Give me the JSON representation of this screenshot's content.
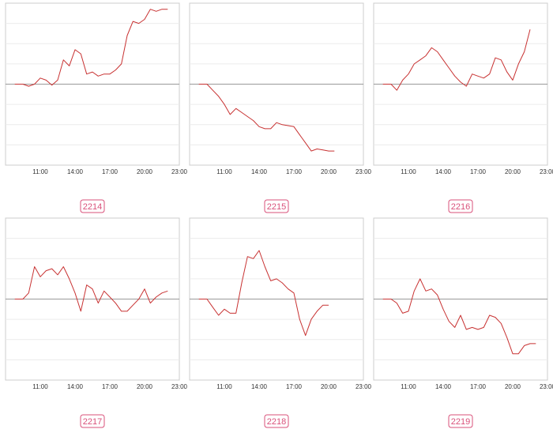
{
  "colors": {
    "line": "#c83232",
    "baseline": "#999999",
    "frame": "#cccccc",
    "grid": "#ececec",
    "badge": "#d9507a",
    "tick": "#333333"
  },
  "chart_data": [
    {
      "type": "line",
      "id": "2214",
      "x_ticks": [
        "11:00",
        "14:00",
        "17:00",
        "20:00",
        "23:00"
      ],
      "grid": true,
      "series": [
        {
          "x": [
            8.8,
            9.5,
            10,
            10.5,
            11,
            11.5,
            12,
            12.5,
            13,
            13.5,
            14,
            14.5,
            15,
            15.5,
            16,
            16.5,
            17,
            17.5,
            18,
            18.5,
            19,
            19.5,
            20,
            20.5,
            21,
            21.5,
            22
          ],
          "y": [
            0,
            0,
            -0.1,
            0,
            0.3,
            0.2,
            -0.05,
            0.2,
            1.2,
            0.9,
            1.7,
            1.5,
            0.5,
            0.6,
            0.4,
            0.5,
            0.5,
            0.7,
            1.0,
            2.4,
            3.1,
            3.0,
            3.2,
            3.7,
            3.6,
            3.7,
            3.7
          ]
        }
      ]
    },
    {
      "type": "line",
      "id": "2215",
      "x_ticks": [
        "11:00",
        "14:00",
        "17:00",
        "20:00",
        "23:00"
      ],
      "grid": true,
      "series": [
        {
          "x": [
            8.8,
            9.5,
            10,
            10.5,
            11,
            11.5,
            12,
            12.5,
            13,
            13.5,
            14,
            14.5,
            15,
            15.5,
            16,
            16.5,
            17,
            17.5,
            18,
            18.5,
            19,
            19.5,
            20,
            20.5
          ],
          "y": [
            0,
            0,
            -0.3,
            -0.6,
            -1.0,
            -1.5,
            -1.2,
            -1.4,
            -1.6,
            -1.8,
            -2.1,
            -2.2,
            -2.2,
            -1.9,
            -2.0,
            -2.05,
            -2.1,
            -2.5,
            -2.9,
            -3.3,
            -3.2,
            -3.25,
            -3.3,
            -3.3
          ]
        }
      ]
    },
    {
      "type": "line",
      "id": "2216",
      "x_ticks": [
        "11:00",
        "14:00",
        "17:00",
        "20:00",
        "23:00"
      ],
      "grid": true,
      "series": [
        {
          "x": [
            8.8,
            9.5,
            10,
            10.5,
            11,
            11.5,
            12,
            12.5,
            13,
            13.5,
            14,
            14.5,
            15,
            15.5,
            16,
            16.5,
            17,
            17.5,
            18,
            18.5,
            19,
            19.5,
            20,
            20.5,
            21,
            21.5
          ],
          "y": [
            0,
            0,
            -0.3,
            0.2,
            0.5,
            1.0,
            1.2,
            1.4,
            1.8,
            1.6,
            1.2,
            0.8,
            0.4,
            0.1,
            -0.1,
            0.5,
            0.4,
            0.3,
            0.5,
            1.3,
            1.2,
            0.6,
            0.2,
            1.0,
            1.6,
            2.7
          ]
        }
      ]
    },
    {
      "type": "line",
      "id": "2217",
      "x_ticks": [
        "11:00",
        "14:00",
        "17:00",
        "20:00",
        "23:00"
      ],
      "grid": true,
      "series": [
        {
          "x": [
            8.8,
            9.5,
            10,
            10.5,
            11,
            11.5,
            12,
            12.5,
            13,
            13.5,
            14,
            14.5,
            15,
            15.5,
            16,
            16.5,
            17,
            17.5,
            18,
            18.5,
            19,
            19.5,
            20,
            20.5,
            21,
            21.5,
            22
          ],
          "y": [
            0,
            0,
            0.3,
            1.6,
            1.1,
            1.4,
            1.5,
            1.2,
            1.6,
            1.0,
            0.3,
            -0.6,
            0.7,
            0.5,
            -0.2,
            0.4,
            0.1,
            -0.2,
            -0.6,
            -0.6,
            -0.3,
            0.0,
            0.5,
            -0.2,
            0.1,
            0.3,
            0.4
          ]
        }
      ]
    },
    {
      "type": "line",
      "id": "2218",
      "x_ticks": [
        "11:00",
        "14:00",
        "17:00",
        "20:00",
        "23:00"
      ],
      "grid": true,
      "series": [
        {
          "x": [
            8.8,
            9.5,
            10,
            10.5,
            11,
            11.5,
            12,
            12.5,
            13,
            13.5,
            14,
            14.5,
            15,
            15.5,
            16,
            16.5,
            17,
            17.5,
            18,
            18.5,
            19,
            19.5,
            20
          ],
          "y": [
            0,
            0,
            -0.4,
            -0.8,
            -0.5,
            -0.7,
            -0.7,
            0.8,
            2.1,
            2.0,
            2.4,
            1.6,
            0.9,
            1.0,
            0.8,
            0.5,
            0.3,
            -1.0,
            -1.8,
            -1.0,
            -0.6,
            -0.3,
            -0.3
          ]
        }
      ]
    },
    {
      "type": "line",
      "id": "2219",
      "x_ticks": [
        "11:00",
        "14:00",
        "17:00",
        "20:00",
        "23:00"
      ],
      "grid": true,
      "series": [
        {
          "x": [
            8.8,
            9.5,
            10,
            10.5,
            11,
            11.5,
            12,
            12.5,
            13,
            13.5,
            14,
            14.5,
            15,
            15.5,
            16,
            16.5,
            17,
            17.5,
            18,
            18.5,
            19,
            19.5,
            20,
            20.5,
            21,
            21.5,
            22
          ],
          "y": [
            0,
            0,
            -0.2,
            -0.7,
            -0.6,
            0.4,
            1.0,
            0.4,
            0.5,
            0.2,
            -0.5,
            -1.1,
            -1.4,
            -0.8,
            -1.5,
            -1.4,
            -1.5,
            -1.4,
            -0.8,
            -0.9,
            -1.2,
            -1.9,
            -2.7,
            -2.7,
            -2.3,
            -2.2,
            -2.2
          ]
        }
      ]
    }
  ]
}
